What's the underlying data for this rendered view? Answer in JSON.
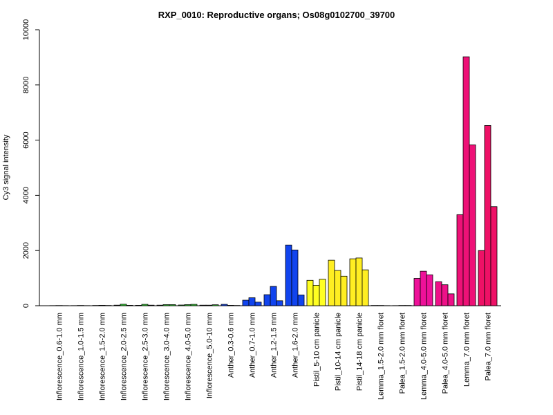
{
  "chart_data": {
    "type": "bar",
    "title": "RXP_0010: Reproductive organs; Os08g0102700_39700",
    "xlabel": "",
    "ylabel": "Cy3 signal intensity",
    "ylim": [
      0,
      10000
    ],
    "yticks": [
      0,
      2000,
      4000,
      6000,
      8000,
      10000
    ],
    "grid": false,
    "groups": [
      {
        "label": "Inflorescence_0.6-1.0 mm",
        "color": "#00CC00",
        "values": [
          5,
          8,
          5
        ]
      },
      {
        "label": "Inflorescence_1.0-1.5 mm",
        "color": "#00CC00",
        "values": [
          5,
          10,
          5
        ]
      },
      {
        "label": "Inflorescence_1.5-2.0 mm",
        "color": "#00CC00",
        "values": [
          10,
          15,
          10
        ]
      },
      {
        "label": "Inflorescence_2.0-2.5 mm",
        "color": "#33CC33",
        "values": [
          20,
          55,
          15
        ]
      },
      {
        "label": "Inflorescence_2.5-3.0 mm",
        "color": "#33CC33",
        "values": [
          15,
          50,
          20
        ]
      },
      {
        "label": "Inflorescence_3.0-4.0 mm",
        "color": "#33CC33",
        "values": [
          20,
          40,
          40
        ]
      },
      {
        "label": "Inflorescence_4.0-5.0 mm",
        "color": "#33CC33",
        "values": [
          25,
          40,
          50
        ]
      },
      {
        "label": "Inflorescence_5.0-10 mm",
        "color": "#33CC33",
        "values": [
          20,
          20,
          35
        ]
      },
      {
        "label": "Anther_0.3-0.6 mm",
        "color": "#1144EE",
        "values": [
          50,
          15,
          10
        ]
      },
      {
        "label": "Anther_0.7-1.0 mm",
        "color": "#1144EE",
        "values": [
          200,
          290,
          130
        ]
      },
      {
        "label": "Anther_1.2-1.5 mm",
        "color": "#1144EE",
        "values": [
          400,
          700,
          180
        ]
      },
      {
        "label": "Anther_1.6-2.0 mm",
        "color": "#1144EE",
        "values": [
          2200,
          2020,
          390
        ]
      },
      {
        "label": "Pistil_5-10 cm panicle",
        "color": "#FFFF22",
        "values": [
          920,
          740,
          960
        ]
      },
      {
        "label": "Pistil_10-14 cm panicle",
        "color": "#FFEE22",
        "values": [
          1650,
          1280,
          1070
        ]
      },
      {
        "label": "Pistil_14-18 cm panicle",
        "color": "#FFEE22",
        "values": [
          1700,
          1730,
          1300
        ]
      },
      {
        "label": "Lemma_1.5-2.0 mm floret",
        "color": "#FF00AA",
        "values": [
          10,
          10,
          5
        ]
      },
      {
        "label": "Palea_1.5-2.0 mm floret",
        "color": "#FF00AA",
        "values": [
          5,
          10,
          10
        ]
      },
      {
        "label": "Lemma_4.0-5.0 mm floret",
        "color": "#EE1199",
        "values": [
          990,
          1250,
          1120
        ]
      },
      {
        "label": "Palea_4.0-5.0 mm floret",
        "color": "#EE1188",
        "values": [
          870,
          760,
          430
        ]
      },
      {
        "label": "Lemma_7.0 mm floret",
        "color": "#EE1177",
        "values": [
          3300,
          9020,
          5830
        ]
      },
      {
        "label": "Palea_7.0 mm floret",
        "color": "#EE1166",
        "values": [
          2000,
          6530,
          3590
        ]
      }
    ]
  }
}
